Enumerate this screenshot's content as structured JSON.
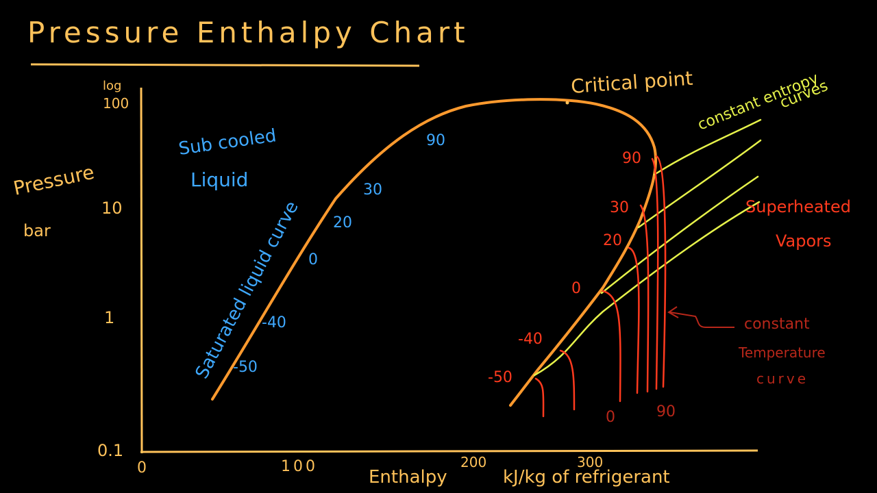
{
  "title": "Pressure Enthalpy Chart",
  "y_axis": {
    "label_line1": "Pressure",
    "label_line2": "bar",
    "scale_note_line1": "log",
    "scale_note_line2": "100",
    "ticks": [
      "10",
      "1",
      "0.1"
    ]
  },
  "x_axis": {
    "label": "Enthalpy",
    "unit_label": "kJ/kg of refrigerant",
    "ticks": [
      "0",
      "100",
      "200",
      "300"
    ]
  },
  "regions": {
    "subcooled_line1": "Sub cooled",
    "subcooled_line2": "Liquid",
    "saturated_liquid": "Saturated liquid curve",
    "superheated_line1": "Superheated",
    "superheated_line2": "Vapors"
  },
  "annotations": {
    "critical_point": "Critical point",
    "constant_entropy_line1": "constant entropy",
    "constant_entropy_line2": "curves",
    "constant_temperature_line1": "constant",
    "constant_temperature_line2": "Temperature",
    "constant_temperature_line3": "curve"
  },
  "liquid_temperatures": [
    "-50",
    "-40",
    "0",
    "20",
    "30",
    "90"
  ],
  "vapor_temperatures": [
    "-50",
    "-40",
    "0",
    "20",
    "30",
    "90"
  ],
  "bottom_temperatures": [
    "0",
    "90"
  ],
  "colors": {
    "background": "#000000",
    "axes": "#ffc25a",
    "dome": "#ff9a2e",
    "blue_text": "#3fa9ff",
    "red": "#ff3a1e",
    "dark_red": "#b8271a",
    "yellow_green": "#e6f24a"
  }
}
